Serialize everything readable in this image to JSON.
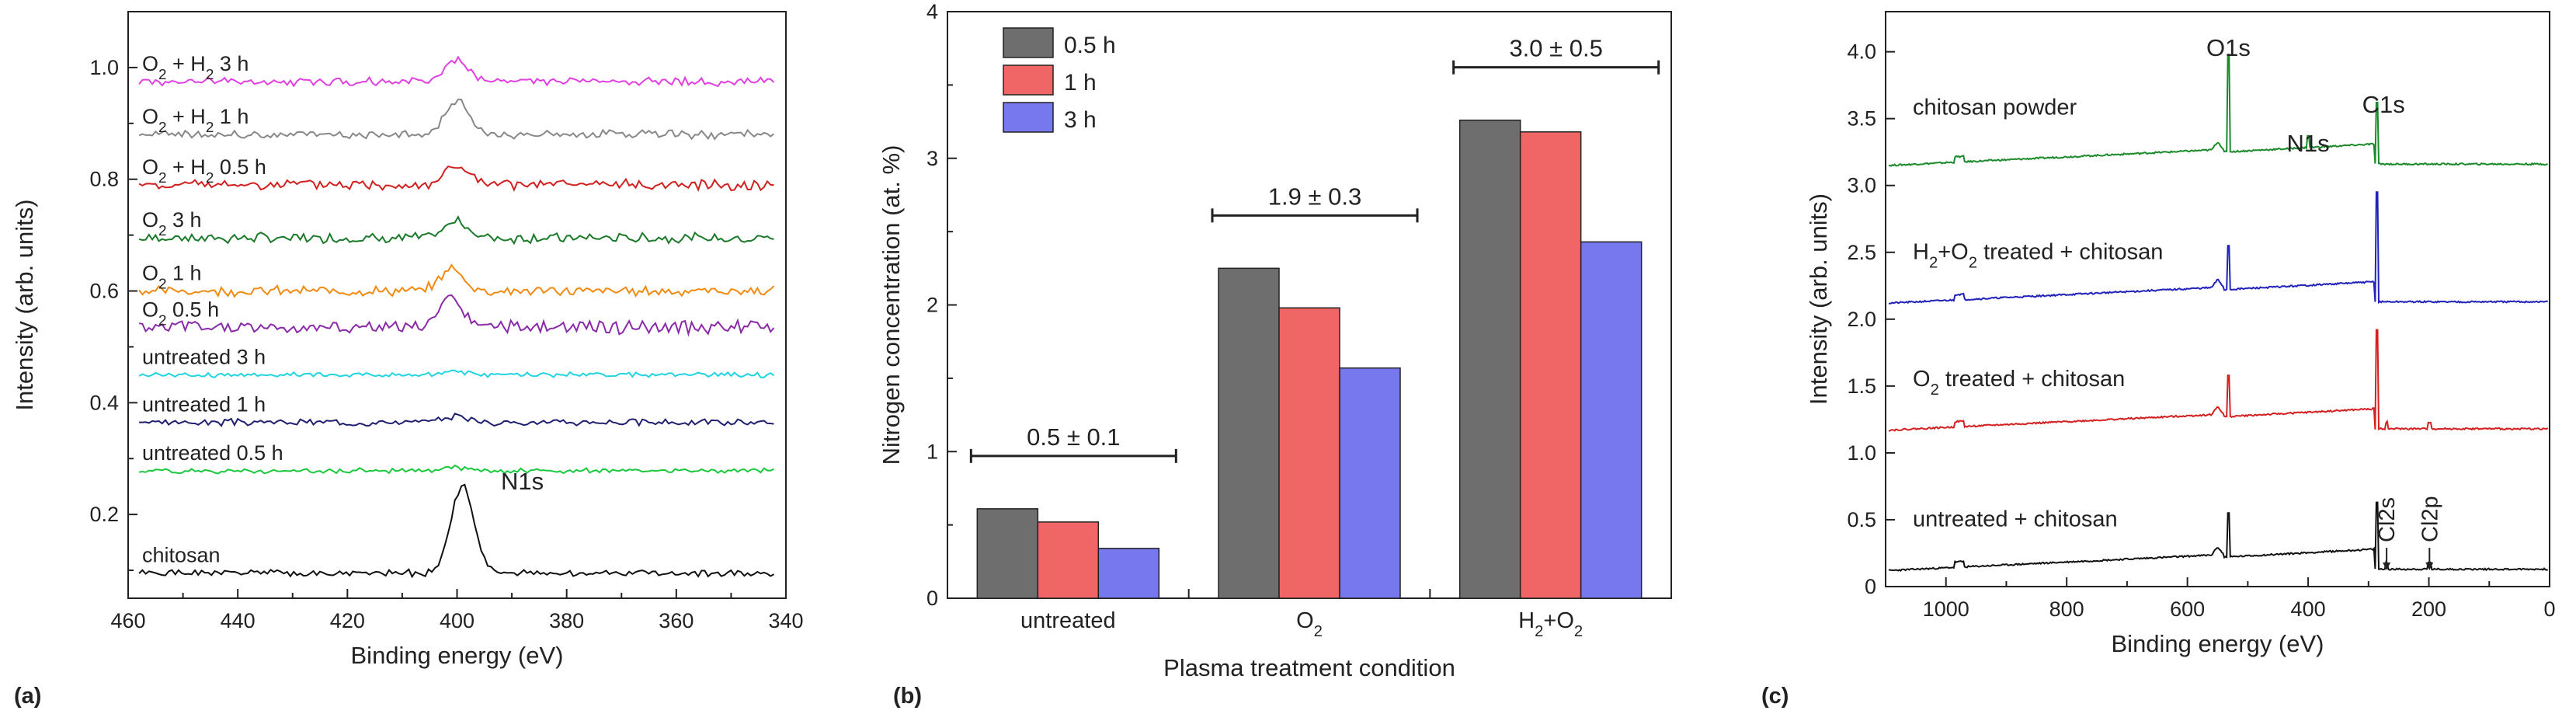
{
  "chart_data": [
    {
      "type": "line",
      "panel_label": "(a)",
      "xlabel": "Binding energy (eV)",
      "ylabel": "Intensity (arb. units)",
      "xlim": [
        460,
        340
      ],
      "ylim": [
        0.05,
        1.1
      ],
      "x_ticks": [
        "460",
        "440",
        "420",
        "400",
        "380",
        "360",
        "340"
      ],
      "y_ticks": [
        "0.2",
        "0.4",
        "0.6",
        "0.8",
        "1.0"
      ],
      "annotation": "N1s",
      "series": [
        {
          "name": "chitosan",
          "label_parts": [
            "chitosan"
          ],
          "color": "#111111",
          "baseline": 0.095,
          "peak": 0.155,
          "peak_x": 399,
          "noise": 0.004,
          "seed": 1
        },
        {
          "name": "untreated 0.5 h",
          "label_parts": [
            "untreated 0.5 h"
          ],
          "color": "#19c83c",
          "baseline": 0.278,
          "peak": 0.006,
          "peak_x": 400,
          "noise": 0.003,
          "seed": 2
        },
        {
          "name": "untreated 1 h",
          "label_parts": [
            "untreated 1 h"
          ],
          "color": "#202070",
          "baseline": 0.365,
          "peak": 0.012,
          "peak_x": 400,
          "noise": 0.004,
          "seed": 3
        },
        {
          "name": "untreated 3 h",
          "label_parts": [
            "untreated 3 h"
          ],
          "color": "#22d4e0",
          "baseline": 0.45,
          "peak": 0.006,
          "peak_x": 400,
          "noise": 0.003,
          "seed": 4
        },
        {
          "name": "O2 0.5 h",
          "label_parts": [
            "O",
            "2",
            " 0.5 h"
          ],
          "color": "#8a2aa8",
          "baseline": 0.535,
          "peak": 0.05,
          "peak_x": 401,
          "noise": 0.008,
          "seed": 5
        },
        {
          "name": "O2 1 h",
          "label_parts": [
            "O",
            "2",
            " 1 h"
          ],
          "color": "#f08a10",
          "baseline": 0.6,
          "peak": 0.04,
          "peak_x": 401,
          "noise": 0.006,
          "seed": 6
        },
        {
          "name": "O2 3 h",
          "label_parts": [
            "O",
            "2",
            " 3 h"
          ],
          "color": "#1a7a2a",
          "baseline": 0.695,
          "peak": 0.03,
          "peak_x": 400,
          "noise": 0.006,
          "seed": 7
        },
        {
          "name": "O2 + H2 0.5 h",
          "label_parts": [
            "O",
            "2",
            " + H",
            "2",
            " 0.5 h"
          ],
          "color": "#d02020",
          "baseline": 0.79,
          "peak": 0.035,
          "peak_x": 400,
          "noise": 0.006,
          "seed": 8
        },
        {
          "name": "O2 + H2 1 h",
          "label_parts": [
            "O",
            "2",
            " + H",
            "2",
            " 1 h"
          ],
          "color": "#888888",
          "baseline": 0.88,
          "peak": 0.06,
          "peak_x": 400,
          "noise": 0.005,
          "seed": 9
        },
        {
          "name": "O2 + H2 3 h",
          "label_parts": [
            "O",
            "2",
            " + H",
            "2",
            " 3 h"
          ],
          "color": "#e040e0",
          "baseline": 0.975,
          "peak": 0.04,
          "peak_x": 400,
          "noise": 0.005,
          "seed": 10
        }
      ]
    },
    {
      "type": "bar",
      "panel_label": "(b)",
      "xlabel": "Plasma treatment condition",
      "ylabel": "Nitrogen concentration (at. %)",
      "ylim": [
        0,
        4
      ],
      "y_ticks": [
        "0",
        "1",
        "2",
        "3",
        "4"
      ],
      "categories": [
        {
          "parts": [
            "untreated"
          ]
        },
        {
          "parts": [
            "O",
            "2"
          ]
        },
        {
          "parts": [
            "H",
            "2",
            "+O",
            "2"
          ]
        }
      ],
      "series": [
        {
          "name": "0.5 h",
          "color": "#6e6e6e",
          "values": [
            0.61,
            2.25,
            3.26
          ]
        },
        {
          "name": "1 h",
          "color": "#f06666",
          "values": [
            0.52,
            1.98,
            3.18
          ]
        },
        {
          "name": "3 h",
          "color": "#7777ee",
          "values": [
            0.34,
            1.57,
            2.43
          ]
        }
      ],
      "group_annotations": [
        "0.5 ± 0.1",
        "1.9 ± 0.3",
        "3.0 ± 0.5"
      ],
      "legend": "top-left"
    },
    {
      "type": "line",
      "panel_label": "(c)",
      "xlabel": "Binding energy (eV)",
      "ylabel": "Intensity (arb. units)",
      "xlim": [
        1100,
        0
      ],
      "ylim": [
        0,
        4.3
      ],
      "x_ticks": [
        "1000",
        "800",
        "600",
        "400",
        "200",
        "0"
      ],
      "y_ticks": [
        "0",
        "0.5",
        "1.0",
        "1.5",
        "2.0",
        "2.5",
        "3.0",
        "3.5",
        "4.0"
      ],
      "peak_labels": [
        "O1s",
        "N1s",
        "C1s",
        "Cl2s",
        "Cl2p"
      ],
      "series": [
        {
          "name": "chitosan powder",
          "label_parts": [
            "chitosan powder"
          ],
          "color": "#1a8a2a",
          "baseline": 3.15,
          "o1s": 3.98,
          "c1s": 3.62,
          "n1s": true,
          "chlorine": false
        },
        {
          "name": "H2+O2 treated + chitosan",
          "label_parts": [
            "H",
            "2",
            "+O",
            "2",
            " treated + chitosan"
          ],
          "color": "#2222bb",
          "baseline": 2.12,
          "o1s": 2.55,
          "c1s": 2.95,
          "n1s": false,
          "chlorine": false
        },
        {
          "name": "O2 treated + chitosan",
          "label_parts": [
            "O",
            "2",
            " treated + chitosan"
          ],
          "color": "#d42020",
          "baseline": 1.17,
          "o1s": 1.58,
          "c1s": 1.92,
          "n1s": false,
          "chlorine": true
        },
        {
          "name": "untreated + chitosan",
          "label_parts": [
            "untreated + chitosan"
          ],
          "color": "#111111",
          "baseline": 0.12,
          "o1s": 0.55,
          "c1s": 0.63,
          "n1s": false,
          "chlorine": true
        }
      ]
    }
  ]
}
